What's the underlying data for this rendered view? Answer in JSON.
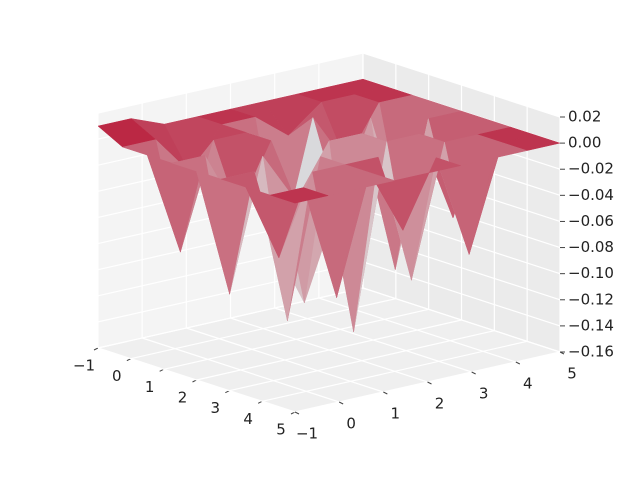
{
  "chart_data": {
    "type": "surface3d",
    "x": [
      -1,
      -0.25,
      0.5,
      1.25,
      2,
      2.75,
      3.5,
      4.25,
      5
    ],
    "y": [
      -1,
      -0.25,
      0.5,
      1.25,
      2,
      2.75,
      3.5,
      4.25,
      5
    ],
    "z": [
      [
        0.01,
        0.01,
        0,
        0,
        0,
        0,
        0,
        0,
        0
      ],
      [
        0,
        0,
        -0.03,
        0,
        0,
        -0.02,
        0,
        0,
        0
      ],
      [
        0,
        -0.08,
        0,
        0,
        -0.1,
        0,
        -0.04,
        0,
        0
      ],
      [
        0,
        0,
        -0.05,
        0,
        -0.13,
        -0.06,
        0,
        -0.09,
        0
      ],
      [
        0,
        -0.1,
        0,
        -0.04,
        0,
        0,
        -0.11,
        0,
        0
      ],
      [
        0,
        0,
        -0.12,
        0,
        -0.14,
        0,
        0,
        -0.07,
        0
      ],
      [
        0,
        -0.06,
        0,
        0,
        0,
        -0.1,
        0,
        0,
        0
      ],
      [
        0,
        0,
        -0.09,
        0,
        -0.05,
        0,
        -0.08,
        0,
        0
      ],
      [
        0,
        0,
        0,
        0,
        0,
        0,
        0,
        0,
        0
      ]
    ],
    "colormap": "coolwarm",
    "xlim": [
      -1,
      5
    ],
    "ylim": [
      -1,
      5
    ],
    "zlim": [
      -0.16,
      0.02
    ],
    "xticks": [
      {
        "value": -1,
        "label": "−1"
      },
      0,
      1,
      2,
      3,
      4,
      5
    ],
    "yticks": [
      {
        "value": -1,
        "label": "−1"
      },
      0,
      1,
      2,
      3,
      4,
      5
    ],
    "zticks": [
      0.02,
      {
        "value": 0,
        "label": "0.00"
      },
      {
        "value": -0.02,
        "label": "−0.02"
      },
      {
        "value": -0.04,
        "label": "−0.04"
      },
      {
        "value": -0.06,
        "label": "−0.06"
      },
      {
        "value": -0.08,
        "label": "−0.08"
      },
      {
        "value": -0.1,
        "label": "−0.10"
      },
      {
        "value": -0.12,
        "label": "−0.12"
      },
      {
        "value": -0.14,
        "label": "−0.14"
      },
      {
        "value": -0.16,
        "label": "−0.16"
      }
    ],
    "grid": true
  }
}
